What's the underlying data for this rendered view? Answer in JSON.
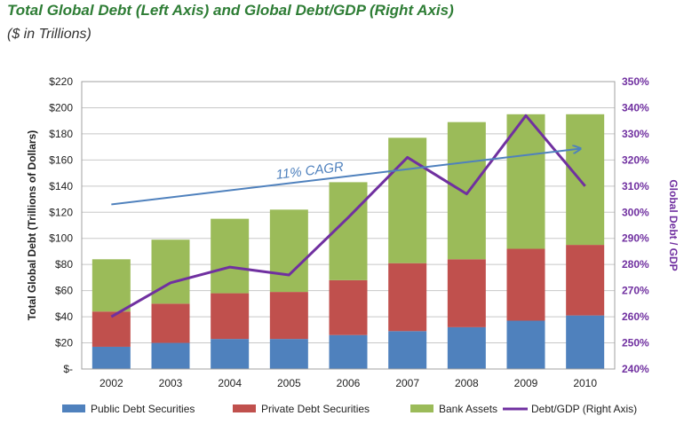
{
  "chart_data": {
    "type": "bar",
    "stacked": true,
    "title": "Total Global Debt (Left Axis) and Global Debt/GDP (Right Axis)",
    "subtitle": "($ in Trillions)",
    "categories": [
      "2002",
      "2003",
      "2004",
      "2005",
      "2006",
      "2007",
      "2008",
      "2009",
      "2010"
    ],
    "series": [
      {
        "name": "Public Debt Securities",
        "color": "#4f81bd",
        "values": [
          17,
          20,
          23,
          23,
          26,
          29,
          32,
          37,
          41
        ]
      },
      {
        "name": "Private Debt Securities",
        "color": "#c0504d",
        "values": [
          27,
          30,
          35,
          36,
          42,
          52,
          52,
          55,
          54
        ]
      },
      {
        "name": "Bank Assets",
        "color": "#9bbb59",
        "values": [
          40,
          49,
          57,
          63,
          75,
          96,
          105,
          103,
          100
        ]
      }
    ],
    "line_series": {
      "name": "Debt/GDP (Right Axis)",
      "color": "#7030a0",
      "axis": "right",
      "values": [
        260,
        273,
        279,
        276,
        298,
        321,
        307,
        337,
        310
      ]
    },
    "left_axis": {
      "label": "Total Global Debt (Trillions of Dollars)",
      "min": 0,
      "max": 220,
      "step": 20,
      "tick_labels": [
        "$-",
        "$20",
        "$40",
        "$60",
        "$80",
        "$100",
        "$120",
        "$140",
        "$160",
        "$180",
        "$200",
        "$220"
      ]
    },
    "right_axis": {
      "label": "Global Debt / GDP",
      "min": 240,
      "max": 350,
      "step": 10,
      "tick_labels": [
        "240%",
        "250%",
        "260%",
        "270%",
        "280%",
        "290%",
        "300%",
        "310%",
        "320%",
        "330%",
        "340%",
        "350%"
      ]
    },
    "annotation": {
      "text": "11% CAGR",
      "arrow_start": {
        "x": "2002",
        "y": 303
      },
      "arrow_end": {
        "x": "2010",
        "y": 325
      }
    },
    "grid": true,
    "legend_position": "bottom"
  }
}
